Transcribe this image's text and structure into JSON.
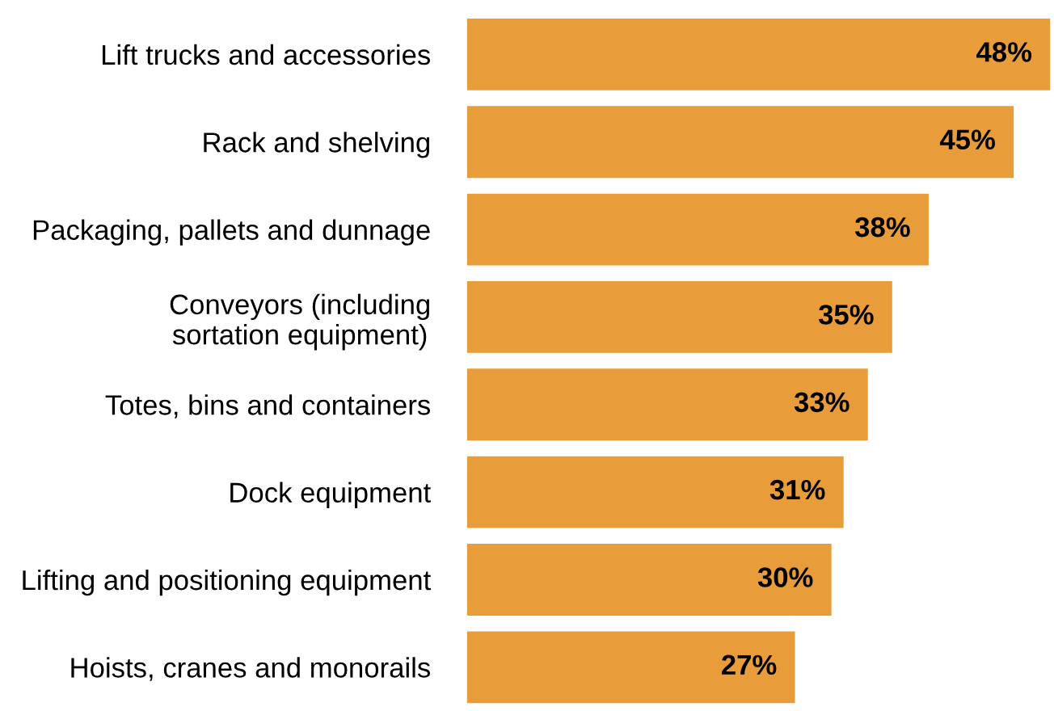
{
  "chart_data": {
    "type": "bar",
    "orientation": "horizontal",
    "categories": [
      "Lift trucks and accessories",
      "Rack and shelving",
      "Packaging, pallets and dunnage",
      "Conveyors (including\nsortation equipment)",
      "Totes, bins and containers",
      "Dock equipment",
      "Lifting and positioning equipment",
      "Hoists, cranes and monorails"
    ],
    "values": [
      48,
      45,
      38,
      35,
      33,
      31,
      30,
      27
    ],
    "value_labels": [
      "48%",
      "45%",
      "38%",
      "35%",
      "33%",
      "31%",
      "30%",
      "27%"
    ],
    "color": "#e89c3a",
    "grid": false,
    "legend": false
  }
}
